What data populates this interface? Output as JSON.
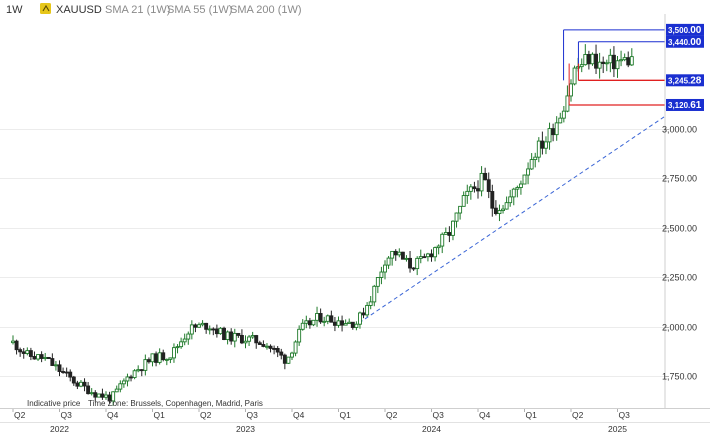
{
  "header": {
    "timeframe": "1W",
    "symbol": "XAUUSD",
    "indicators": [
      "SMA 21 (1W)",
      "SMA 55 (1W)",
      "SMA 200 (1W)"
    ]
  },
  "footer": {
    "indicative": "Indicative price",
    "timezone": "Time Zone: Brussels, Copenhagen, Madrid, Paris"
  },
  "colors": {
    "up": "#1f7a2a",
    "down": "#222222",
    "trend": "#3b66d6",
    "resistance": "#1a2fd0",
    "support": "#e02020",
    "label_blue": "#1a2fd0",
    "label_red": "#1a2fd0"
  },
  "chart_data": {
    "type": "candlestick",
    "y_axis": {
      "ticks": [
        "1,750.00",
        "2,000.00",
        "2,250.00",
        "2,500.00",
        "2,750.00",
        "3,000.00"
      ],
      "tick_values": [
        1750,
        2000,
        2250,
        2500,
        2750,
        3000
      ],
      "range": [
        1615,
        3560
      ]
    },
    "x_axis": {
      "quarter_labels": [
        {
          "label": "Q2",
          "year": 2022.25
        },
        {
          "label": "Q3",
          "year": 2022.5
        },
        {
          "label": "Q4",
          "year": 2022.75
        },
        {
          "label": "Q1",
          "year": 2023.0
        },
        {
          "label": "Q2",
          "year": 2023.25
        },
        {
          "label": "Q3",
          "year": 2023.5
        },
        {
          "label": "Q4",
          "year": 2023.75
        },
        {
          "label": "Q1",
          "year": 2024.0
        },
        {
          "label": "Q2",
          "year": 2024.25
        },
        {
          "label": "Q3",
          "year": 2024.5
        },
        {
          "label": "Q4",
          "year": 2024.75
        },
        {
          "label": "Q1",
          "year": 2025.0
        },
        {
          "label": "Q2",
          "year": 2025.25
        },
        {
          "label": "Q3",
          "year": 2025.5
        }
      ],
      "year_labels": [
        {
          "label": "2022",
          "year": 2022.5
        },
        {
          "label": "2023",
          "year": 2023.5
        },
        {
          "label": "2024",
          "year": 2024.5
        },
        {
          "label": "2025",
          "year": 2025.5
        }
      ],
      "range": [
        2022.25,
        2025.75
      ]
    },
    "price_path": [
      [
        2022.25,
        1920
      ],
      [
        2022.33,
        1855
      ],
      [
        2022.42,
        1840
      ],
      [
        2022.5,
        1780
      ],
      [
        2022.6,
        1710
      ],
      [
        2022.7,
        1660
      ],
      [
        2022.78,
        1640
      ],
      [
        2022.88,
        1760
      ],
      [
        2023.0,
        1840
      ],
      [
        2023.1,
        1860
      ],
      [
        2023.2,
        1990
      ],
      [
        2023.3,
        2010
      ],
      [
        2023.4,
        1950
      ],
      [
        2023.5,
        1940
      ],
      [
        2023.6,
        1920
      ],
      [
        2023.72,
        1830
      ],
      [
        2023.8,
        1990
      ],
      [
        2023.9,
        2050
      ],
      [
        2024.0,
        2030
      ],
      [
        2024.1,
        2020
      ],
      [
        2024.18,
        2160
      ],
      [
        2024.25,
        2340
      ],
      [
        2024.3,
        2380
      ],
      [
        2024.38,
        2310
      ],
      [
        2024.45,
        2330
      ],
      [
        2024.52,
        2400
      ],
      [
        2024.6,
        2480
      ],
      [
        2024.68,
        2650
      ],
      [
        2024.78,
        2750
      ],
      [
        2024.83,
        2600
      ],
      [
        2024.9,
        2620
      ],
      [
        2024.96,
        2700
      ],
      [
        2025.05,
        2880
      ],
      [
        2025.12,
        2950
      ],
      [
        2025.2,
        3090
      ],
      [
        2025.27,
        3300
      ],
      [
        2025.35,
        3360
      ],
      [
        2025.42,
        3320
      ],
      [
        2025.5,
        3340
      ],
      [
        2025.58,
        3350
      ]
    ],
    "trendline": {
      "from": [
        2024.08,
        2000
      ],
      "to": [
        2025.75,
        3060
      ]
    },
    "levels": [
      {
        "value": 3500,
        "label": "3,500",
        "frac": "00",
        "kind": "resistance",
        "from_year": 2025.21
      },
      {
        "value": 3440,
        "label": "3,440",
        "frac": "00",
        "kind": "resistance",
        "from_year": 2025.29
      },
      {
        "value": 3245.28,
        "label": "3,245",
        "frac": "28",
        "kind": "support",
        "from_year": 2025.29
      },
      {
        "value": 3120.61,
        "label": "3,120",
        "frac": "61",
        "kind": "support",
        "from_year": 2025.24
      }
    ]
  }
}
